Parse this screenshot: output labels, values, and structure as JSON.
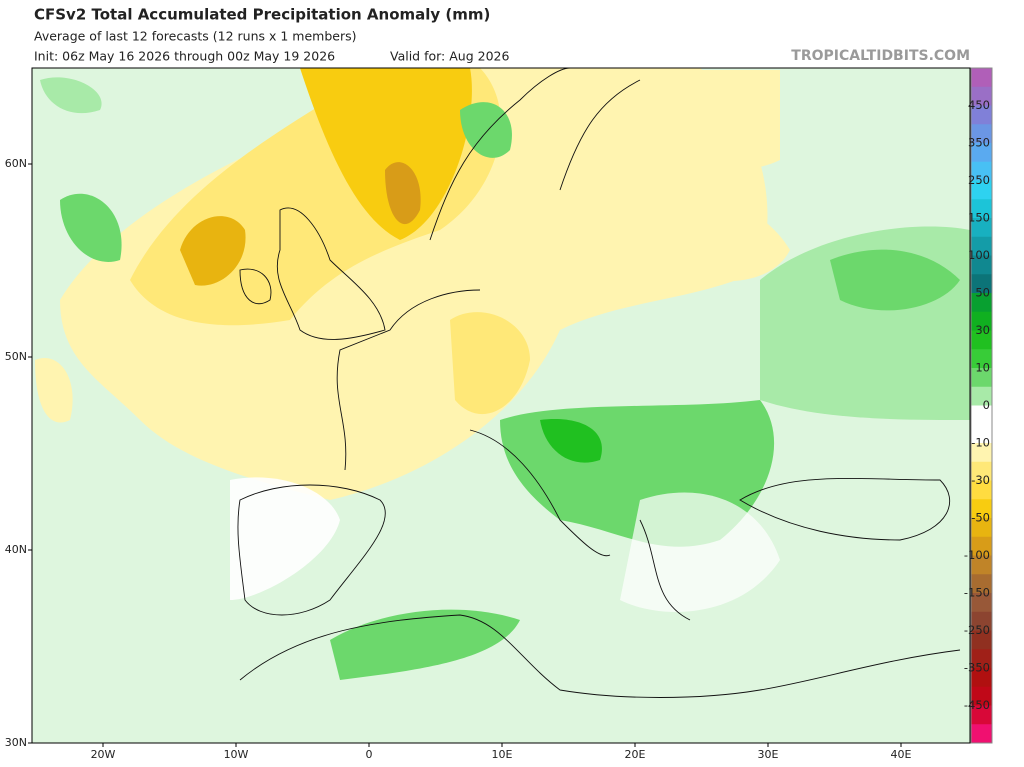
{
  "header": {
    "title": "CFSv2 Total Accumulated Precipitation Anomaly (mm)",
    "subtitle": "Average of last 12 forecasts (12 runs x 1 members)",
    "init": "Init: 06z May 16 2026 through 00z May 19 2026",
    "valid": "Valid for: Aug 2026",
    "watermark": "TROPICALTIDBITS.COM"
  },
  "map": {
    "lat_labels": [
      "60N",
      "50N",
      "40N",
      "30N"
    ],
    "lon_labels": [
      "20W",
      "10W",
      "0",
      "10E",
      "20E",
      "30E",
      "40E"
    ]
  },
  "colorbar": {
    "labels": [
      450,
      350,
      250,
      150,
      100,
      50,
      30,
      10,
      0,
      -10,
      -30,
      -50,
      -100,
      -150,
      -250,
      -350,
      -450
    ],
    "colors": [
      "#b05fb8",
      "#9a6fc6",
      "#8080d8",
      "#6b96e4",
      "#5aaaf0",
      "#48c0f4",
      "#2ed2f0",
      "#1cc4d8",
      "#18b0c0",
      "#149ca8",
      "#108890",
      "#0c7478",
      "#08a030",
      "#10b020",
      "#20c020",
      "#38cc38",
      "#6cd86c",
      "#a8eaa8",
      "#ffffff",
      "#ffffff",
      "#fff4b0",
      "#ffe878",
      "#ffdc40",
      "#f8cc10",
      "#e8b410",
      "#d89c18",
      "#c08428",
      "#a86c30",
      "#985838",
      "#8c4430",
      "#903020",
      "#a02018",
      "#b01010",
      "#c00818",
      "#d80838",
      "#f01070"
    ]
  }
}
